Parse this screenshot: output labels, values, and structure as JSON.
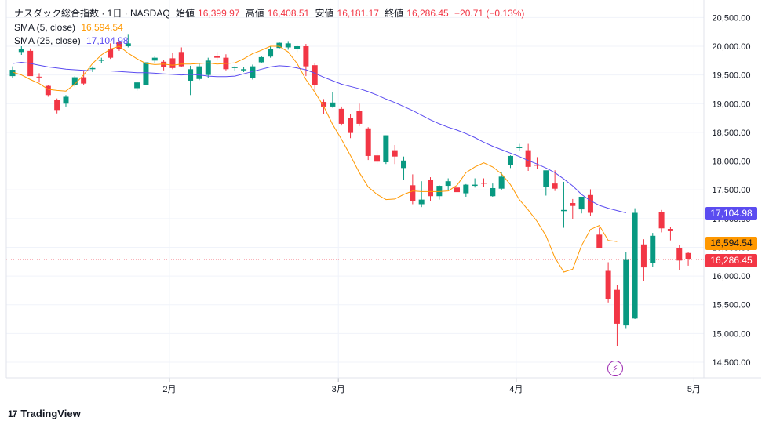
{
  "header": {
    "symbol_label": "ナスダック総合指数 · 1日 · NASDAQ",
    "open_label": "始値",
    "open_value": "16,399.97",
    "high_label": "高値",
    "high_value": "16,408.51",
    "low_label": "安値",
    "low_value": "16,181.17",
    "close_label": "終値",
    "close_value": "16,286.45",
    "change_value": "−20.71 (−0.13%)"
  },
  "indicators": {
    "sma5_label": "SMA (5, close)",
    "sma5_value": "16,594.54",
    "sma25_label": "SMA (25, close)",
    "sma25_value": "17,104.98"
  },
  "price_tags": {
    "sma25": "17,104.98",
    "sma5": "16,594.54",
    "last": "16,286.45"
  },
  "brand": {
    "name": "TradingView",
    "logo_text": "17"
  },
  "colors": {
    "up": "#089981",
    "down": "#f23645",
    "sma5": "#ff9800",
    "sma25": "#5b4cf0",
    "last_price": "#f23645",
    "flash": "#9c27b0"
  },
  "icons": {
    "brand": "tradingview-logo-icon",
    "flash": "lightning-icon"
  },
  "chart_data": {
    "type": "candlestick",
    "ylim": [
      14300,
      20800
    ],
    "y_ticks": [
      14500,
      15000,
      15500,
      16000,
      16500,
      17000,
      17500,
      18000,
      18500,
      19000,
      19500,
      20000,
      20500
    ],
    "y_tick_labels": [
      "14,500.00",
      "15,000.00",
      "15,500.00",
      "16,000.00",
      "16,500.00",
      "17,000.00",
      "17,500.00",
      "18,000.00",
      "18,500.00",
      "19,000.00",
      "19,500.00",
      "20,000.00",
      "20,500.00"
    ],
    "x_labels": [
      {
        "label": "2月",
        "index": 18
      },
      {
        "label": "3月",
        "index": 37
      },
      {
        "label": "4月",
        "index": 57
      },
      {
        "label": "5月",
        "index": 77
      }
    ],
    "grid": true,
    "series": [
      {
        "name": "SMA (5, close)",
        "type": "line",
        "color": "#ff9800",
        "values": [
          19550,
          19500,
          19420,
          19350,
          19250,
          19230,
          19220,
          19340,
          19500,
          19700,
          19850,
          19950,
          20000,
          19880,
          19780,
          19700,
          19680,
          19690,
          19670,
          19690,
          19690,
          19700,
          19710,
          19690,
          19700,
          19710,
          19780,
          19870,
          19930,
          20000,
          20000,
          19900,
          19700,
          19420,
          19200,
          18950,
          18640,
          18380,
          18100,
          17800,
          17550,
          17420,
          17330,
          17340,
          17420,
          17480,
          17470,
          17470,
          17470,
          17480,
          17580,
          17800,
          17900,
          17970,
          17900,
          17780,
          17590,
          17330,
          17150,
          16950,
          16700,
          16320,
          16070,
          16120,
          16530,
          16810,
          16880,
          16620,
          16600
        ]
      },
      {
        "name": "SMA (25, close)",
        "type": "line",
        "color": "#5b4cf0",
        "values": [
          19700,
          19720,
          19700,
          19670,
          19640,
          19620,
          19600,
          19590,
          19580,
          19570,
          19570,
          19570,
          19560,
          19550,
          19540,
          19540,
          19530,
          19520,
          19510,
          19500,
          19510,
          19500,
          19480,
          19470,
          19470,
          19480,
          19520,
          19560,
          19600,
          19640,
          19660,
          19650,
          19620,
          19590,
          19530,
          19460,
          19400,
          19340,
          19300,
          19260,
          19210,
          19150,
          19080,
          19020,
          18950,
          18880,
          18800,
          18720,
          18650,
          18590,
          18540,
          18480,
          18410,
          18330,
          18260,
          18200,
          18140,
          18080,
          18010,
          17950,
          17880,
          17800,
          17690,
          17570,
          17420,
          17310,
          17230,
          17180,
          17140,
          17100
        ]
      },
      {
        "name": "OHLC",
        "type": "candles",
        "ohlc": [
          [
            19480,
            19650,
            19450,
            19590
          ],
          [
            19900,
            20000,
            19850,
            19950
          ],
          [
            19920,
            19960,
            19520,
            19480
          ],
          [
            19470,
            19530,
            19370,
            19460
          ],
          [
            19310,
            19320,
            19120,
            19150
          ],
          [
            19070,
            19090,
            18830,
            18890
          ],
          [
            19000,
            19150,
            18950,
            19120
          ],
          [
            19330,
            19480,
            19300,
            19460
          ],
          [
            19460,
            19580,
            19320,
            19350
          ],
          [
            19600,
            19650,
            19550,
            19620
          ],
          [
            19750,
            19800,
            19700,
            19760
          ],
          [
            19950,
            20050,
            19780,
            19800
          ],
          [
            20080,
            20090,
            19920,
            19950
          ],
          [
            20000,
            20200,
            19980,
            20050
          ],
          [
            19270,
            19380,
            19230,
            19370
          ],
          [
            19330,
            19720,
            19320,
            19720
          ],
          [
            19750,
            19830,
            19700,
            19800
          ],
          [
            19730,
            19760,
            19580,
            19640
          ],
          [
            19790,
            19880,
            19600,
            19620
          ],
          [
            19900,
            19980,
            19640,
            19650
          ],
          [
            19400,
            19660,
            19150,
            19600
          ],
          [
            19430,
            19700,
            19410,
            19650
          ],
          [
            19500,
            19800,
            19450,
            19750
          ],
          [
            19830,
            19900,
            19750,
            19800
          ],
          [
            19800,
            19860,
            19580,
            19600
          ],
          [
            19620,
            19650,
            19570,
            19640
          ],
          [
            19580,
            19640,
            19550,
            19600
          ],
          [
            19450,
            19680,
            19420,
            19650
          ],
          [
            19720,
            19830,
            19700,
            19810
          ],
          [
            19820,
            20000,
            19800,
            19950
          ],
          [
            19970,
            20080,
            19950,
            20060
          ],
          [
            19980,
            20090,
            19940,
            20050
          ],
          [
            19950,
            20030,
            19900,
            20000
          ],
          [
            20000,
            20040,
            19480,
            19650
          ],
          [
            19670,
            19700,
            19230,
            19320
          ],
          [
            19030,
            19080,
            18820,
            18950
          ],
          [
            18950,
            19200,
            18930,
            19020
          ],
          [
            18910,
            18950,
            18620,
            18650
          ],
          [
            18750,
            18820,
            18400,
            18490
          ],
          [
            18870,
            19000,
            18610,
            18650
          ],
          [
            18570,
            18590,
            18020,
            18090
          ],
          [
            18100,
            18180,
            17950,
            17990
          ],
          [
            17980,
            18450,
            17950,
            18450
          ],
          [
            18190,
            18280,
            17950,
            18080
          ],
          [
            17880,
            18080,
            17680,
            18010
          ],
          [
            17580,
            17770,
            17250,
            17310
          ],
          [
            17250,
            17650,
            17200,
            17330
          ],
          [
            17680,
            17720,
            17300,
            17390
          ],
          [
            17390,
            17580,
            17330,
            17570
          ],
          [
            17570,
            17700,
            17500,
            17650
          ],
          [
            17540,
            17660,
            17430,
            17460
          ],
          [
            17440,
            17600,
            17380,
            17590
          ],
          [
            17570,
            17700,
            17540,
            17590
          ],
          [
            17620,
            17700,
            17550,
            17610
          ],
          [
            17390,
            17610,
            17380,
            17530
          ],
          [
            17520,
            17800,
            17500,
            17730
          ],
          [
            17930,
            18100,
            17880,
            18090
          ],
          [
            18230,
            18300,
            18180,
            18240
          ],
          [
            18190,
            18300,
            17830,
            17900
          ],
          [
            17940,
            18070,
            17860,
            17920
          ],
          [
            17550,
            17830,
            17400,
            17840
          ],
          [
            17610,
            17840,
            17480,
            17520
          ],
          [
            17130,
            17640,
            16840,
            17150
          ],
          [
            17270,
            17340,
            16990,
            17220
          ],
          [
            17160,
            17380,
            17090,
            17380
          ],
          [
            17410,
            17510,
            17050,
            17100
          ],
          [
            16720,
            16840,
            16480,
            16480
          ],
          [
            16090,
            16240,
            15540,
            15600
          ],
          [
            15760,
            15850,
            14780,
            15170
          ],
          [
            15140,
            16420,
            15080,
            16280
          ],
          [
            15260,
            17180,
            15250,
            17100
          ],
          [
            16550,
            16640,
            15910,
            16150
          ],
          [
            16230,
            16750,
            16160,
            16700
          ],
          [
            17120,
            17150,
            16760,
            16830
          ],
          [
            16820,
            16860,
            16620,
            16780
          ],
          [
            16480,
            16540,
            16100,
            16270
          ],
          [
            16400,
            16410,
            16180,
            16290
          ]
        ]
      }
    ]
  }
}
